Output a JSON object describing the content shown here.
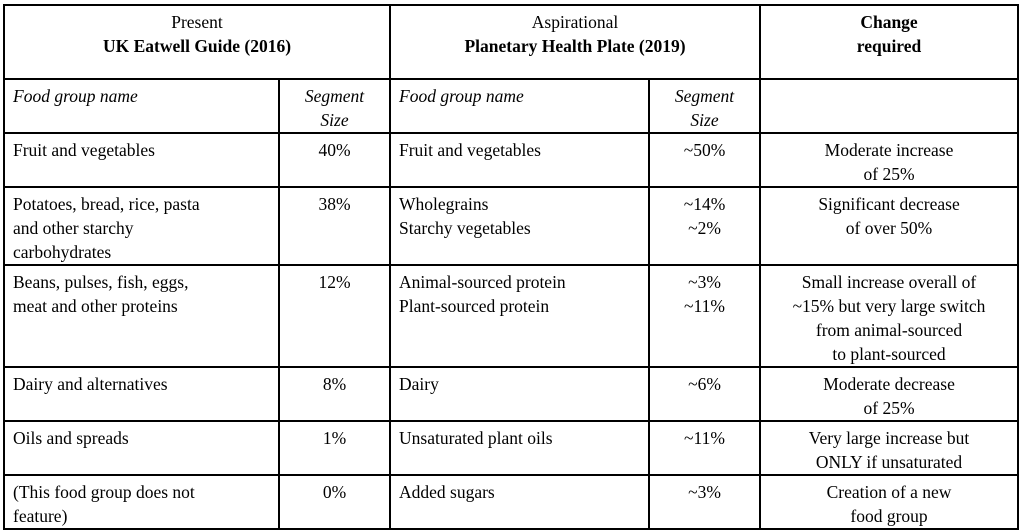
{
  "header": {
    "present_label": "Present",
    "present_title": "UK Eatwell Guide (2016)",
    "aspirational_label": "Aspirational",
    "aspirational_title": "Planetary Health Plate (2019)",
    "change_line1": "Change",
    "change_line2": "required"
  },
  "subheader": {
    "food_group_name": "Food group name",
    "segment_size_1": "Segment",
    "segment_size_2": "Size"
  },
  "rows": [
    {
      "present": [
        "Fruit and vegetables"
      ],
      "present_size": "40%",
      "plate": [
        "Fruit and vegetables"
      ],
      "plate_size": [
        "~50%"
      ],
      "change": [
        "Moderate increase",
        "of 25%"
      ]
    },
    {
      "present": [
        "Potatoes, bread, rice, pasta",
        "and other starchy",
        "carbohydrates"
      ],
      "present_size": "38%",
      "plate": [
        "Wholegrains",
        "Starchy vegetables"
      ],
      "plate_size": [
        "~14%",
        "~2%"
      ],
      "change": [
        "Significant decrease",
        "of over 50%"
      ]
    },
    {
      "present": [
        "Beans, pulses, fish, eggs,",
        "meat and other proteins"
      ],
      "present_size": "12%",
      "plate": [
        "Animal-sourced protein",
        "Plant-sourced protein"
      ],
      "plate_size": [
        "~3%",
        "~11%"
      ],
      "change": [
        "Small increase overall of",
        "~15% but very large switch",
        "from animal-sourced",
        "to plant-sourced"
      ]
    },
    {
      "present": [
        "Dairy and alternatives"
      ],
      "present_size": "8%",
      "plate": [
        "Dairy"
      ],
      "plate_size": [
        "~6%"
      ],
      "change": [
        "Moderate decrease",
        "of 25%"
      ]
    },
    {
      "present": [
        "Oils and spreads"
      ],
      "present_size": "1%",
      "plate": [
        "Unsaturated plant oils"
      ],
      "plate_size": [
        "~11%"
      ],
      "change": [
        "Very large increase but",
        "ONLY if unsaturated"
      ]
    },
    {
      "present": [
        "(This food group does not",
        "feature)"
      ],
      "present_size": "0%",
      "plate": [
        "Added sugars"
      ],
      "plate_size": [
        "~3%"
      ],
      "change": [
        "Creation of a new",
        "food group"
      ]
    }
  ]
}
